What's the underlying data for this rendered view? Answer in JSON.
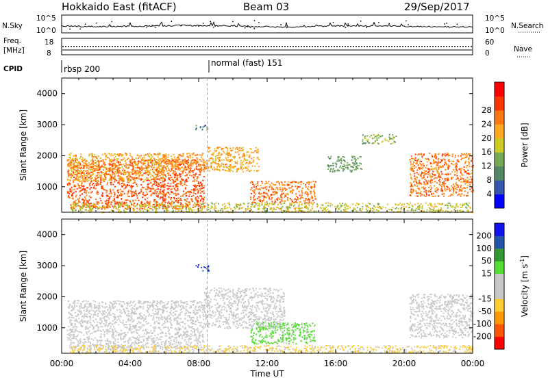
{
  "header": {
    "station": "Hokkaido East (fitACF)",
    "beam": "Beam 03",
    "date": "29/Sep/2017"
  },
  "status_panels": {
    "nsky": {
      "label": "N.Sky",
      "tick_top": "10^5",
      "tick_bottom": "10^0"
    },
    "nsearch": {
      "label": "N.Search",
      "tick_top": "10^5",
      "tick_bottom": "10^0"
    },
    "freq": {
      "label_line1": "Freq.",
      "label_line2": "[MHz]",
      "tick_top": "18",
      "tick_bottom": "8"
    },
    "nave": {
      "label": "Nave",
      "tick_top": "60",
      "tick_bottom": "0"
    },
    "cpid": {
      "label": "CPID",
      "mode1": "rbsp 200",
      "mode2": "normal (fast) 151",
      "mode2_start_hour": 8.5
    }
  },
  "colors": {
    "power": [
      "#0000ff",
      "#3355aa",
      "#558866",
      "#77aa55",
      "#cccc22",
      "#ffaa22",
      "#ff7711",
      "#ff3300",
      "#ff0000"
    ],
    "velocity": [
      "#ff0000",
      "#ff5500",
      "#ff9900",
      "#ffcc33",
      "#c8c8c8",
      "#c8c8c8",
      "#55dd33",
      "#339933",
      "#2255aa",
      "#1111ee"
    ]
  },
  "chart_data": [
    {
      "type": "heatmap",
      "panel": "power",
      "xlabel": "",
      "ylabel": "Slant Range [km]",
      "xlim": [
        0,
        24
      ],
      "ylim": [
        180,
        4500
      ],
      "yticks": [
        "1000",
        "2000",
        "3000",
        "4000"
      ],
      "colorbar_label": "Power [dB]",
      "colorbar_ticks": [
        "4",
        "8",
        "12",
        "16",
        "20",
        "24",
        "28"
      ],
      "regions": [
        {
          "x": [
            0.3,
            8.3
          ],
          "y": [
            300,
            1900
          ],
          "value": 28
        },
        {
          "x": [
            0.3,
            6.0
          ],
          "y": [
            1200,
            2100
          ],
          "value": 22
        },
        {
          "x": [
            5.8,
            8.5
          ],
          "y": [
            1500,
            2100
          ],
          "value": 24
        },
        {
          "x": [
            8.5,
            11.5
          ],
          "y": [
            1500,
            2300
          ],
          "value": 22
        },
        {
          "x": [
            11.0,
            14.8
          ],
          "y": [
            500,
            1200
          ],
          "value": 26
        },
        {
          "x": [
            20.3,
            24.0
          ],
          "y": [
            700,
            2100
          ],
          "value": 26
        },
        {
          "x": [
            0.5,
            24.0
          ],
          "y": [
            190,
            500
          ],
          "value": 18
        },
        {
          "x": [
            7.8,
            8.6
          ],
          "y": [
            2850,
            3000
          ],
          "value": 10
        },
        {
          "x": [
            15.5,
            17.5
          ],
          "y": [
            1500,
            2000
          ],
          "value": 12
        },
        {
          "x": [
            17.5,
            19.5
          ],
          "y": [
            2400,
            2700
          ],
          "value": 14
        }
      ]
    },
    {
      "type": "heatmap",
      "panel": "velocity",
      "xlabel": "Time UT",
      "ylabel": "Slant Range [km]",
      "xlim": [
        0,
        24
      ],
      "ylim": [
        180,
        4500
      ],
      "xticks": [
        "00:00",
        "04:00",
        "08:00",
        "12:00",
        "16:00",
        "20:00",
        "00:00"
      ],
      "yticks": [
        "1000",
        "2000",
        "3000",
        "4000"
      ],
      "colorbar_label": "Velocity [m s^-1]",
      "colorbar_ticks": [
        "-200",
        "-100",
        "-50",
        "-15",
        "15",
        "50",
        "100",
        "200"
      ],
      "regions": [
        {
          "x": [
            0.3,
            8.3
          ],
          "y": [
            300,
            1900
          ],
          "value": 0
        },
        {
          "x": [
            8.3,
            13.0
          ],
          "y": [
            1000,
            2300
          ],
          "value": 0
        },
        {
          "x": [
            11.0,
            14.8
          ],
          "y": [
            500,
            1200
          ],
          "value": 25
        },
        {
          "x": [
            20.3,
            24.0
          ],
          "y": [
            700,
            2100
          ],
          "value": 0
        },
        {
          "x": [
            0.5,
            24.0
          ],
          "y": [
            190,
            450
          ],
          "value": -20
        },
        {
          "x": [
            7.8,
            8.6
          ],
          "y": [
            2850,
            3050
          ],
          "value": 200
        }
      ]
    }
  ]
}
